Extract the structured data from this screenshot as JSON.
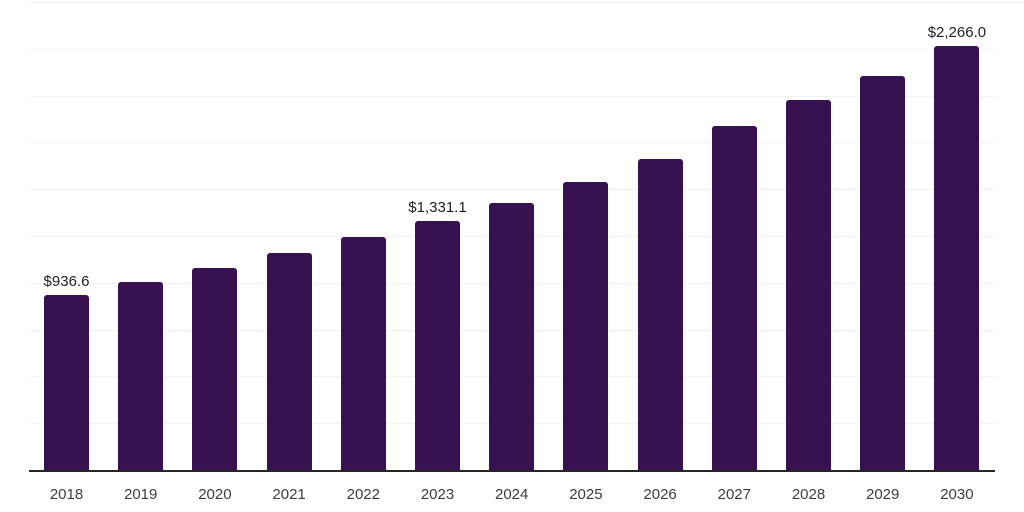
{
  "chart_data": {
    "type": "bar",
    "title": "",
    "xlabel": "",
    "ylabel": "",
    "categories": [
      "2018",
      "2019",
      "2020",
      "2021",
      "2022",
      "2023",
      "2024",
      "2025",
      "2026",
      "2027",
      "2028",
      "2029",
      "2030"
    ],
    "values": [
      936.6,
      1004,
      1078,
      1158,
      1244,
      1331.1,
      1426,
      1541,
      1661,
      1840,
      1976,
      2105,
      2266.0
    ],
    "data_labels": [
      "$936.6",
      null,
      null,
      null,
      null,
      "$1,331.1",
      null,
      null,
      null,
      null,
      null,
      null,
      "$2,266.0"
    ],
    "ylim": [
      0,
      2500
    ],
    "grid_step": 250,
    "grid": true,
    "legend": false,
    "y_tick_labels_visible": false,
    "bar_color": "#381150",
    "value_label_color": "#1f1f1f",
    "tick_label_color": "#3d3d3d",
    "grid_color": "#f2f2f2",
    "axis_color": "#262626",
    "background_color": "#ffffff"
  }
}
